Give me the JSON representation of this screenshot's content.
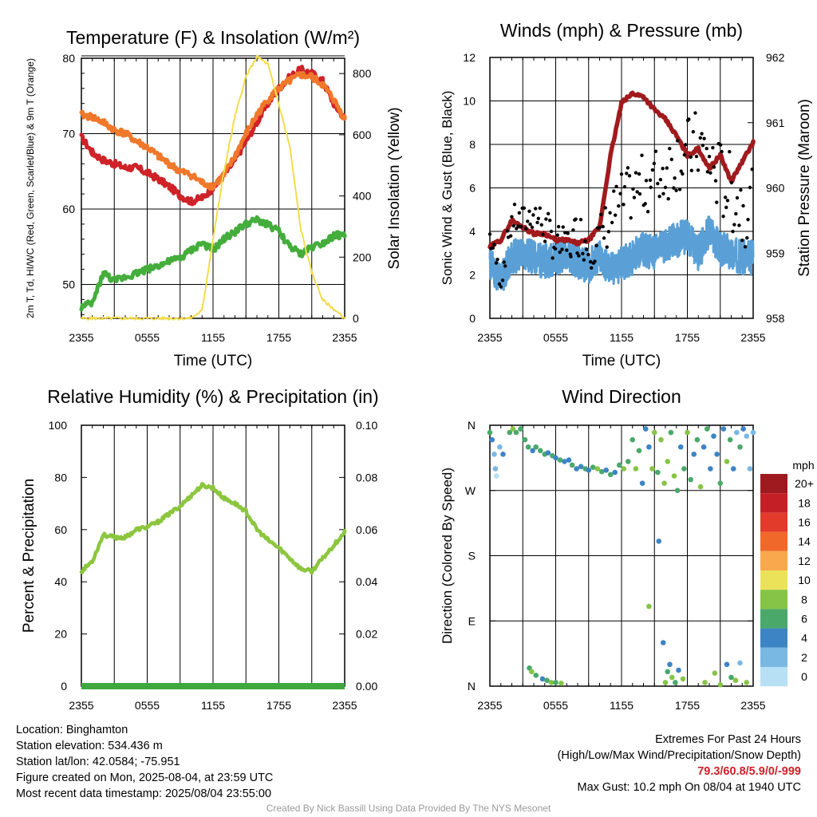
{
  "colors": {
    "red": "#cf2229",
    "orange": "#f0782b",
    "green": "#44ad3c",
    "yellow": "#f4dc4c",
    "maroon": "#a01a1e",
    "blue": "#5aa0d6",
    "black": "#000000",
    "humidity": "#8cc63f",
    "precip": "#3ea83e"
  },
  "x_tick_labels": [
    "2355",
    "0555",
    "1155",
    "1755",
    "2355"
  ],
  "legend": {
    "unit": "mph",
    "levels": [
      "20+",
      "18",
      "16",
      "14",
      "12",
      "10",
      "8",
      "6",
      "4",
      "2",
      "0"
    ],
    "colors": [
      "#9e1a1e",
      "#c41f27",
      "#e23b2b",
      "#f0682a",
      "#f9a84d",
      "#ebe25a",
      "#86c447",
      "#4aa86b",
      "#3d84c5",
      "#7ab8e4",
      "#b8e0f5"
    ]
  },
  "chart_data": [
    {
      "type": "line",
      "title": "Temperature (F) & Insolation (W/m²)",
      "xlabel": "Time (UTC)",
      "ylabel": "2m T, Td, HI/WC (Red, Green, Scarlet/Blue) & 9m T (Orange)",
      "ylabel_right": "Solar Insolation (Yellow)",
      "ylim": [
        45.5,
        80
      ],
      "ylim_right": [
        0,
        850
      ],
      "yticks": [
        50,
        60,
        70,
        80
      ],
      "yticks_right": [
        0,
        200,
        400,
        600,
        800
      ],
      "x_hours": [
        0,
        1,
        2,
        3,
        4,
        5,
        6,
        7,
        8,
        9,
        10,
        11,
        12,
        13,
        14,
        15,
        16,
        17,
        18,
        19,
        20,
        21,
        22,
        23,
        24
      ],
      "series": [
        {
          "color": "red",
          "axis": "left",
          "values": [
            69.5,
            67.5,
            66.5,
            66.0,
            65.5,
            65.5,
            64.8,
            64.0,
            63.0,
            61.8,
            61.0,
            61.5,
            62.8,
            64.5,
            66.5,
            69.0,
            71.5,
            74.0,
            76.0,
            77.5,
            78.5,
            78.0,
            77.0,
            74.0,
            72.0
          ]
        },
        {
          "color": "orange",
          "axis": "left",
          "values": [
            72.5,
            72.2,
            71.5,
            70.5,
            70.0,
            69.0,
            68.2,
            67.0,
            66.0,
            65.0,
            64.5,
            63.5,
            63.0,
            64.5,
            67.0,
            70.0,
            72.5,
            74.5,
            76.0,
            77.0,
            77.8,
            77.5,
            76.5,
            74.5,
            72.0
          ]
        },
        {
          "color": "green",
          "axis": "left",
          "values": [
            47.0,
            47.5,
            51.5,
            50.5,
            51.0,
            51.5,
            52.0,
            52.5,
            53.0,
            53.5,
            54.5,
            55.5,
            54.5,
            56.0,
            57.0,
            58.0,
            58.5,
            58.0,
            57.0,
            55.0,
            54.0,
            55.0,
            55.5,
            56.5,
            56.5
          ]
        },
        {
          "color": "yellow",
          "axis": "right",
          "values": [
            0,
            0,
            0,
            0,
            0,
            0,
            0,
            0,
            0,
            0,
            0,
            25,
            260,
            480,
            660,
            790,
            855,
            830,
            700,
            560,
            290,
            150,
            60,
            30,
            0
          ]
        }
      ]
    },
    {
      "type": "line",
      "title": "Winds (mph) & Pressure (mb)",
      "xlabel": "Time (UTC)",
      "ylabel": "Sonic Wind & Gust (Blue, Black)",
      "ylabel_right": "Station Pressure (Maroon)",
      "ylim": [
        0,
        12
      ],
      "ylim_right": [
        958,
        962
      ],
      "yticks": [
        0,
        2,
        4,
        6,
        8,
        10,
        12
      ],
      "yticks_right": [
        958,
        959,
        960,
        961,
        962
      ],
      "x_hours": [
        0,
        1,
        2,
        3,
        4,
        5,
        6,
        7,
        8,
        9,
        10,
        11,
        12,
        13,
        14,
        15,
        16,
        17,
        18,
        19,
        20,
        21,
        22,
        23,
        24
      ],
      "series": [
        {
          "color": "blue",
          "axis": "left",
          "values": [
            2.5,
            1.8,
            2.8,
            3.0,
            2.8,
            2.6,
            2.8,
            3.0,
            2.6,
            2.4,
            2.8,
            2.2,
            2.5,
            2.8,
            3.2,
            3.0,
            3.4,
            3.6,
            3.8,
            3.0,
            4.0,
            3.2,
            3.0,
            2.8,
            2.8
          ]
        },
        {
          "color": "maroon",
          "axis": "right",
          "values": [
            959.1,
            959.2,
            959.5,
            959.4,
            959.3,
            959.3,
            959.2,
            959.2,
            959.15,
            959.2,
            959.4,
            960.5,
            961.3,
            961.45,
            961.4,
            961.2,
            961.05,
            960.8,
            960.5,
            960.6,
            960.3,
            960.5,
            960.1,
            960.4,
            960.7
          ]
        },
        {
          "color": "black",
          "axis": "left",
          "style": "points",
          "values": [
            3.8,
            1.8,
            4.6,
            4.4,
            4.9,
            4.2,
            3.4,
            3.2,
            4.0,
            3.4,
            3.6,
            4.6,
            5.4,
            5.8,
            6.2,
            6.4,
            6.8,
            7.4,
            7.6,
            8.0,
            7.2,
            6.4,
            5.8,
            5.2,
            5.4
          ]
        }
      ]
    },
    {
      "type": "line",
      "title": "Relative Humidity (%) & Precipitation (in)",
      "xlabel": "",
      "ylabel": "Percent & Precipitation",
      "ylim": [
        0,
        100
      ],
      "ylim_right": [
        0,
        0.1
      ],
      "yticks": [
        0,
        20,
        40,
        60,
        80,
        100
      ],
      "yticks_right": [
        0.0,
        0.02,
        0.04,
        0.06,
        0.08,
        0.1
      ],
      "yticks_right_labels": [
        "0.00",
        "0.02",
        "0.04",
        "0.06",
        "0.08",
        "0.10"
      ],
      "x_hours": [
        0,
        1,
        2,
        3,
        4,
        5,
        6,
        7,
        8,
        9,
        10,
        11,
        12,
        13,
        14,
        15,
        16,
        17,
        18,
        19,
        20,
        21,
        22,
        23,
        24
      ],
      "series": [
        {
          "color": "humidity",
          "axis": "left",
          "values": [
            44,
            48,
            58,
            57,
            57,
            60,
            61,
            63,
            66,
            69,
            73,
            77,
            76,
            72,
            70,
            67,
            60,
            56,
            53,
            49,
            45,
            44,
            49,
            54,
            59
          ]
        },
        {
          "color": "precip",
          "axis": "right",
          "values": [
            0,
            0,
            0,
            0,
            0,
            0,
            0,
            0,
            0,
            0,
            0,
            0,
            0,
            0,
            0,
            0,
            0,
            0,
            0,
            0,
            0,
            0,
            0,
            0,
            0
          ]
        }
      ]
    },
    {
      "type": "scatter",
      "title": "Wind Direction",
      "xlabel": "",
      "ylabel": "Direction (Colored By Speed)",
      "ylim": [
        0,
        360
      ],
      "ytick_labels": [
        "N",
        "E",
        "S",
        "W",
        "N"
      ],
      "series": [
        {
          "name": "",
          "points": [
            [
              0.0,
              350,
              3
            ],
            [
              0.2,
              340,
              2
            ],
            [
              0.4,
              320,
              1
            ],
            [
              0.5,
              300,
              1
            ],
            [
              0.6,
              290,
              0
            ],
            [
              0.9,
              330,
              1
            ],
            [
              1.2,
              320,
              2
            ],
            [
              1.8,
              350,
              3
            ],
            [
              2.1,
              355,
              4
            ],
            [
              2.4,
              350,
              3
            ],
            [
              2.8,
              355,
              3
            ],
            [
              3.2,
              340,
              3
            ],
            [
              3.5,
              330,
              3
            ],
            [
              3.9,
              325,
              2
            ],
            [
              4.2,
              330,
              3
            ],
            [
              4.6,
              325,
              3
            ],
            [
              5.0,
              320,
              3
            ],
            [
              5.3,
              322,
              2
            ],
            [
              5.7,
              318,
              3
            ],
            [
              6.0,
              315,
              2
            ],
            [
              6.4,
              312,
              3
            ],
            [
              6.8,
              310,
              2
            ],
            [
              7.2,
              312,
              2
            ],
            [
              7.5,
              305,
              3
            ],
            [
              7.9,
              300,
              2
            ],
            [
              8.3,
              303,
              2
            ],
            [
              8.7,
              300,
              3
            ],
            [
              9.0,
              298,
              2
            ],
            [
              9.4,
              302,
              3
            ],
            [
              9.8,
              300,
              4
            ],
            [
              10.2,
              296,
              3
            ],
            [
              10.6,
              298,
              2
            ],
            [
              11.0,
              292,
              3
            ],
            [
              11.4,
              295,
              2
            ],
            [
              11.8,
              305,
              3
            ],
            [
              12.2,
              300,
              4
            ],
            [
              12.6,
              310,
              3
            ],
            [
              13.0,
              340,
              3
            ],
            [
              13.3,
              300,
              4
            ],
            [
              13.6,
              325,
              3
            ],
            [
              13.9,
              280,
              2
            ],
            [
              14.2,
              355,
              2
            ],
            [
              14.5,
              330,
              2
            ],
            [
              14.8,
              300,
              4
            ],
            [
              15.0,
              350,
              4
            ],
            [
              15.3,
              295,
              3
            ],
            [
              15.6,
              340,
              4
            ],
            [
              15.9,
              280,
              4
            ],
            [
              16.2,
              310,
              4
            ],
            [
              16.5,
              350,
              3
            ],
            [
              16.8,
              290,
              4
            ],
            [
              17.1,
              270,
              3
            ],
            [
              17.4,
              330,
              2
            ],
            [
              17.7,
              300,
              3
            ],
            [
              18.0,
              350,
              4
            ],
            [
              18.3,
              285,
              3
            ],
            [
              18.6,
              320,
              2
            ],
            [
              18.9,
              340,
              3
            ],
            [
              19.2,
              275,
              4
            ],
            [
              19.5,
              330,
              2
            ],
            [
              19.8,
              355,
              3
            ],
            [
              20.1,
              300,
              2
            ],
            [
              20.4,
              345,
              2
            ],
            [
              20.7,
              320,
              2
            ],
            [
              21.0,
              280,
              3
            ],
            [
              21.3,
              355,
              2
            ],
            [
              21.6,
              310,
              4
            ],
            [
              21.9,
              340,
              3
            ],
            [
              22.2,
              300,
              2
            ],
            [
              22.5,
              350,
              1
            ],
            [
              22.8,
              330,
              3
            ],
            [
              23.1,
              355,
              2
            ],
            [
              23.4,
              345,
              1
            ],
            [
              23.7,
              300,
              1
            ],
            [
              24.0,
              350,
              1
            ],
            [
              14.5,
              110,
              4
            ],
            [
              15.4,
              200,
              2
            ],
            [
              15.8,
              60,
              2
            ],
            [
              3.6,
              25,
              3
            ],
            [
              3.8,
              20,
              4
            ],
            [
              4.2,
              15,
              3
            ],
            [
              4.8,
              10,
              2
            ],
            [
              5.2,
              8,
              3
            ],
            [
              5.6,
              5,
              4
            ],
            [
              6.0,
              5,
              3
            ],
            [
              6.5,
              4,
              4
            ],
            [
              16.0,
              5,
              4
            ],
            [
              16.2,
              20,
              3
            ],
            [
              16.4,
              30,
              2
            ],
            [
              16.6,
              12,
              4
            ],
            [
              16.9,
              5,
              3
            ],
            [
              17.2,
              22,
              2
            ],
            [
              17.6,
              10,
              4
            ],
            [
              19.6,
              5,
              4
            ],
            [
              20.5,
              18,
              4
            ],
            [
              21.0,
              2,
              4
            ],
            [
              21.6,
              30,
              2
            ],
            [
              22.0,
              12,
              3
            ],
            [
              22.4,
              8,
              4
            ],
            [
              22.8,
              32,
              1
            ],
            [
              23.4,
              5,
              4
            ]
          ]
        }
      ]
    }
  ],
  "info_left": {
    "location": "Location: Binghamton",
    "elevation": "Station elevation: 534.436 m",
    "latlon": "Station lat/lon: 42.0584; -75.951",
    "created": "Figure created on Mon, 2025-08-04, at 23:59 UTC",
    "recent": "Most recent data timestamp: 2025/08/04 23:55:00"
  },
  "info_right": {
    "title": "Extremes For Past 24 Hours",
    "subtitle": "(High/Low/Max Wind/Precipitation/Snow Depth)",
    "values": "79.3/60.8/5.9/0/-999",
    "gust": "Max Gust: 10.2 mph On 08/04 at 1940 UTC"
  },
  "credit": "Created By Nick Bassill Using Data Provided By The NYS Mesonet"
}
